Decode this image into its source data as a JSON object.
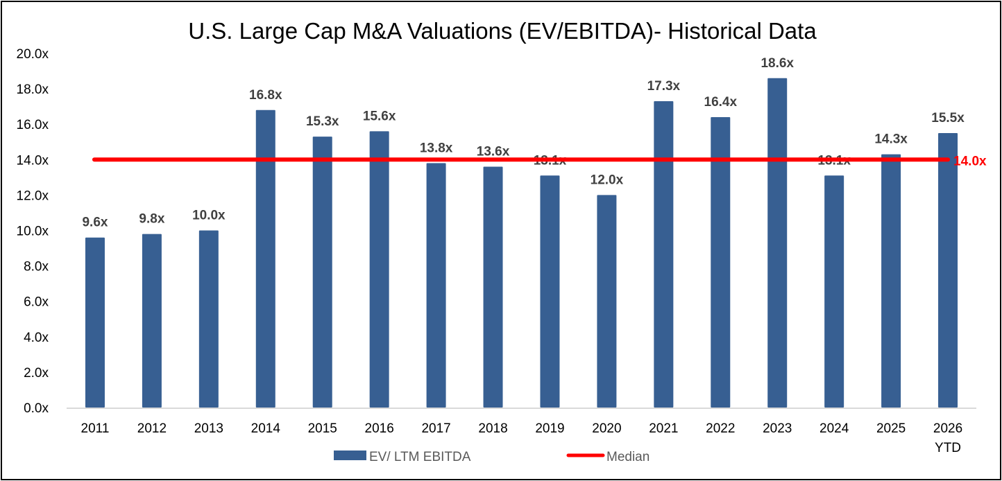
{
  "chart_data": {
    "type": "bar",
    "title": "U.S. Large Cap M&A Valuations (EV/EBITDA)- Historical Data",
    "xlabel": "",
    "ylabel": "",
    "ylim": [
      0,
      20
    ],
    "ytick_step": 2,
    "ytick_labels": [
      "0.0x",
      "2.0x",
      "4.0x",
      "6.0x",
      "8.0x",
      "10.0x",
      "12.0x",
      "14.0x",
      "16.0x",
      "18.0x",
      "20.0x"
    ],
    "categories": [
      "2011",
      "2012",
      "2013",
      "2014",
      "2015",
      "2016",
      "2017",
      "2018",
      "2019",
      "2020",
      "2021",
      "2022",
      "2023",
      "2024",
      "2025",
      "2026\nYTD"
    ],
    "series": [
      {
        "name": "EV/ LTM EBITDA",
        "type": "bar",
        "color": "#375F92",
        "values": [
          9.6,
          9.8,
          10.0,
          16.8,
          15.3,
          15.6,
          13.8,
          13.6,
          13.1,
          12.0,
          17.3,
          16.4,
          18.6,
          13.1,
          14.3,
          15.5
        ],
        "labels": [
          "9.6x",
          "9.8x",
          "10.0x",
          "16.8x",
          "15.3x",
          "15.6x",
          "13.8x",
          "13.6x",
          "13.1x",
          "12.0x",
          "17.3x",
          "16.4x",
          "18.6x",
          "13.1x",
          "14.3x",
          "15.5x"
        ]
      },
      {
        "name": "Median",
        "type": "line",
        "color": "#FF0000",
        "value": 14.0,
        "label": "14.0x"
      }
    ],
    "grid": false,
    "legend": "bottom"
  }
}
